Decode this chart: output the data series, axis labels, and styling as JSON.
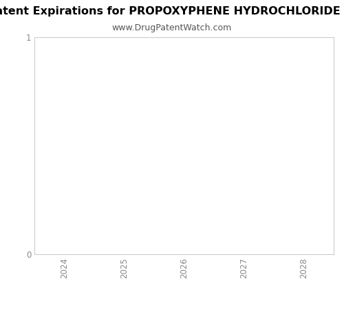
{
  "title": "Patent Expirations for PROPOXYPHENE HYDROCHLORIDE W",
  "subtitle": "www.DrugPatentWatch.com",
  "xlim": [
    2023.5,
    2028.5
  ],
  "ylim": [
    0,
    1
  ],
  "xticks": [
    2024,
    2025,
    2026,
    2027,
    2028
  ],
  "yticks": [
    0,
    1
  ],
  "background_color": "#ffffff",
  "plot_bg_color": "#ffffff",
  "spine_color": "#cccccc",
  "tick_color": "#888888",
  "title_fontsize": 11.5,
  "subtitle_fontsize": 9,
  "tick_fontsize": 8.5
}
